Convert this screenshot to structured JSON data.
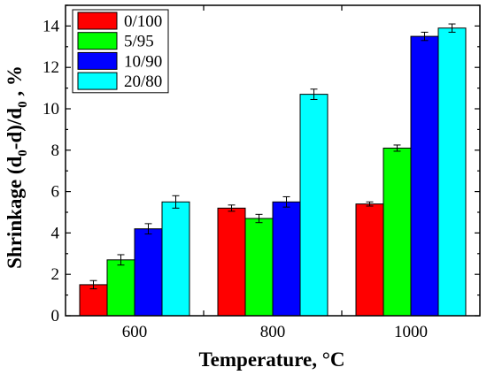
{
  "chart_data": {
    "type": "bar",
    "xlabel": "Temperature, °C",
    "ylabel_parts": {
      "prefix": "Shrinkage (d",
      "sub1": "0",
      "middle": "-d)/d",
      "sub2": "0",
      "suffix": " , %"
    },
    "categories": [
      "600",
      "800",
      "1000"
    ],
    "ylim": [
      0,
      15
    ],
    "yticks": [
      "0",
      "2",
      "4",
      "6",
      "8",
      "10",
      "12",
      "14"
    ],
    "legend_position": "top-left",
    "series": [
      {
        "name": "0/100",
        "color": "#ff0000",
        "values": [
          1.5,
          5.2,
          5.4
        ],
        "errors": [
          0.2,
          0.15,
          0.1
        ]
      },
      {
        "name": "5/95",
        "color": "#00ff00",
        "values": [
          2.7,
          4.7,
          8.1
        ],
        "errors": [
          0.25,
          0.2,
          0.15
        ]
      },
      {
        "name": "10/90",
        "color": "#0000ff",
        "values": [
          4.2,
          5.5,
          13.5
        ],
        "errors": [
          0.25,
          0.25,
          0.2
        ]
      },
      {
        "name": "20/80",
        "color": "#00ffff",
        "values": [
          5.5,
          10.7,
          13.9
        ],
        "errors": [
          0.3,
          0.25,
          0.2
        ]
      }
    ]
  }
}
